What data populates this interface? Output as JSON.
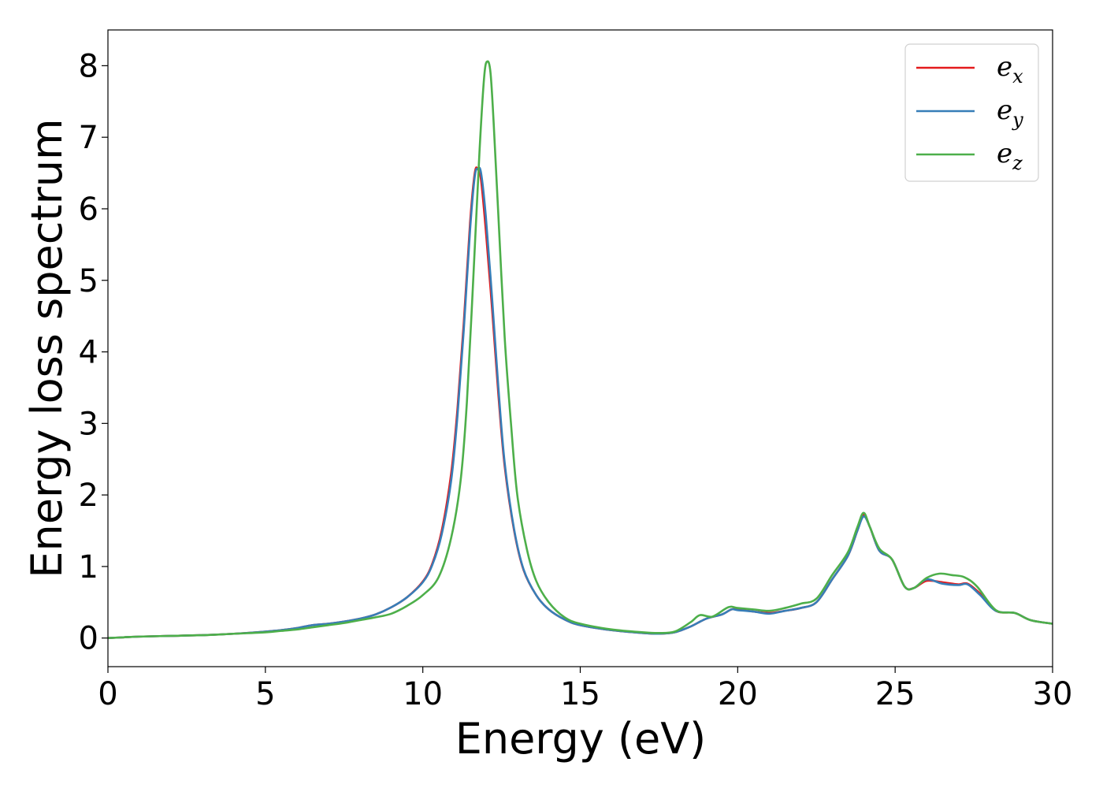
{
  "chart_data": {
    "type": "line",
    "xlabel": "Energy (eV)",
    "ylabel": "Energy loss spectrum",
    "xlim": [
      0,
      30
    ],
    "ylim": [
      -0.4,
      8.5
    ],
    "xticks": [
      0,
      5,
      10,
      15,
      20,
      25,
      30
    ],
    "yticks": [
      0,
      1,
      2,
      3,
      4,
      5,
      6,
      7,
      8
    ],
    "grid": false,
    "legend_position": "top-right",
    "series": [
      {
        "name": "e_x",
        "legend_base": "e",
        "legend_sub": "x",
        "color": "#e41a1c",
        "x": [
          0,
          0.5,
          1,
          2,
          3,
          4,
          5,
          5.5,
          6,
          6.5,
          7,
          7.5,
          8,
          8.5,
          9,
          9.5,
          10,
          10.3,
          10.6,
          10.9,
          11.1,
          11.3,
          11.5,
          11.65,
          11.75,
          11.85,
          12.0,
          12.2,
          12.4,
          12.6,
          12.9,
          13.2,
          13.6,
          14.0,
          14.5,
          15,
          16,
          17,
          17.5,
          18,
          18.5,
          19,
          19.5,
          19.8,
          20,
          20.5,
          21,
          21.5,
          22,
          22.5,
          23,
          23.5,
          23.8,
          24.0,
          24.2,
          24.5,
          24.9,
          25.3,
          25.6,
          26.0,
          26.5,
          27.0,
          27.3,
          27.7,
          28.2,
          28.8,
          29.3,
          30
        ],
        "y": [
          0.0,
          0.01,
          0.02,
          0.03,
          0.04,
          0.06,
          0.09,
          0.11,
          0.14,
          0.18,
          0.2,
          0.23,
          0.27,
          0.33,
          0.43,
          0.57,
          0.79,
          1.04,
          1.5,
          2.3,
          3.2,
          4.4,
          5.8,
          6.5,
          6.55,
          6.4,
          5.7,
          4.6,
          3.4,
          2.4,
          1.5,
          0.95,
          0.6,
          0.4,
          0.26,
          0.18,
          0.11,
          0.07,
          0.06,
          0.08,
          0.16,
          0.27,
          0.33,
          0.4,
          0.4,
          0.37,
          0.35,
          0.38,
          0.42,
          0.5,
          0.82,
          1.15,
          1.5,
          1.72,
          1.55,
          1.22,
          1.1,
          0.72,
          0.7,
          0.8,
          0.78,
          0.75,
          0.76,
          0.62,
          0.38,
          0.35,
          0.25,
          0.2
        ]
      },
      {
        "name": "e_y",
        "legend_base": "e",
        "legend_sub": "y",
        "color": "#377eb8",
        "x": [
          0,
          0.5,
          1,
          2,
          3,
          4,
          5,
          5.5,
          6,
          6.5,
          7,
          7.5,
          8,
          8.5,
          9,
          9.5,
          10,
          10.3,
          10.6,
          10.9,
          11.1,
          11.3,
          11.5,
          11.65,
          11.75,
          11.85,
          12.0,
          12.2,
          12.4,
          12.6,
          12.9,
          13.2,
          13.6,
          14.0,
          14.5,
          15,
          16,
          17,
          17.5,
          18,
          18.5,
          19,
          19.5,
          19.8,
          20,
          20.5,
          21,
          21.5,
          22,
          22.5,
          23,
          23.5,
          23.8,
          24.0,
          24.2,
          24.5,
          24.9,
          25.3,
          25.6,
          26.0,
          26.5,
          27.0,
          27.3,
          27.7,
          28.2,
          28.8,
          29.3,
          30
        ],
        "y": [
          0.0,
          0.01,
          0.02,
          0.03,
          0.04,
          0.06,
          0.09,
          0.11,
          0.14,
          0.18,
          0.2,
          0.23,
          0.27,
          0.33,
          0.43,
          0.57,
          0.78,
          1.02,
          1.45,
          2.2,
          3.1,
          4.3,
          5.7,
          6.45,
          6.56,
          6.5,
          5.9,
          4.75,
          3.5,
          2.45,
          1.52,
          0.96,
          0.6,
          0.4,
          0.26,
          0.18,
          0.11,
          0.07,
          0.06,
          0.08,
          0.16,
          0.27,
          0.33,
          0.4,
          0.39,
          0.37,
          0.34,
          0.38,
          0.42,
          0.5,
          0.82,
          1.15,
          1.5,
          1.7,
          1.55,
          1.22,
          1.1,
          0.72,
          0.7,
          0.82,
          0.76,
          0.74,
          0.75,
          0.6,
          0.38,
          0.35,
          0.25,
          0.2
        ]
      },
      {
        "name": "e_z",
        "legend_base": "e",
        "legend_sub": "z",
        "color": "#4daf4a",
        "x": [
          0,
          0.5,
          1,
          2,
          3,
          4,
          5,
          5.5,
          6,
          6.5,
          7,
          7.5,
          8,
          8.5,
          9,
          9.5,
          10,
          10.5,
          10.9,
          11.2,
          11.4,
          11.6,
          11.8,
          11.95,
          12.05,
          12.15,
          12.25,
          12.4,
          12.6,
          12.8,
          13.0,
          13.3,
          13.6,
          14.0,
          14.5,
          15,
          16,
          17,
          17.5,
          18,
          18.5,
          18.8,
          19.2,
          19.7,
          20,
          20.5,
          21,
          21.5,
          22,
          22.5,
          23,
          23.5,
          23.8,
          24.0,
          24.2,
          24.5,
          24.9,
          25.3,
          25.6,
          26.0,
          26.4,
          26.8,
          27.2,
          27.6,
          28.2,
          28.8,
          29.3,
          30
        ],
        "y": [
          0.0,
          0.01,
          0.02,
          0.03,
          0.04,
          0.06,
          0.08,
          0.1,
          0.12,
          0.15,
          0.18,
          0.21,
          0.25,
          0.29,
          0.34,
          0.45,
          0.6,
          0.85,
          1.4,
          2.2,
          3.3,
          5.0,
          6.8,
          7.85,
          8.06,
          7.9,
          7.2,
          5.9,
          4.2,
          3.0,
          2.0,
          1.25,
          0.8,
          0.5,
          0.29,
          0.2,
          0.12,
          0.08,
          0.07,
          0.09,
          0.22,
          0.32,
          0.3,
          0.43,
          0.42,
          0.4,
          0.38,
          0.42,
          0.48,
          0.55,
          0.88,
          1.2,
          1.55,
          1.75,
          1.55,
          1.25,
          1.1,
          0.72,
          0.7,
          0.84,
          0.9,
          0.88,
          0.85,
          0.72,
          0.39,
          0.35,
          0.25,
          0.2
        ]
      }
    ]
  }
}
